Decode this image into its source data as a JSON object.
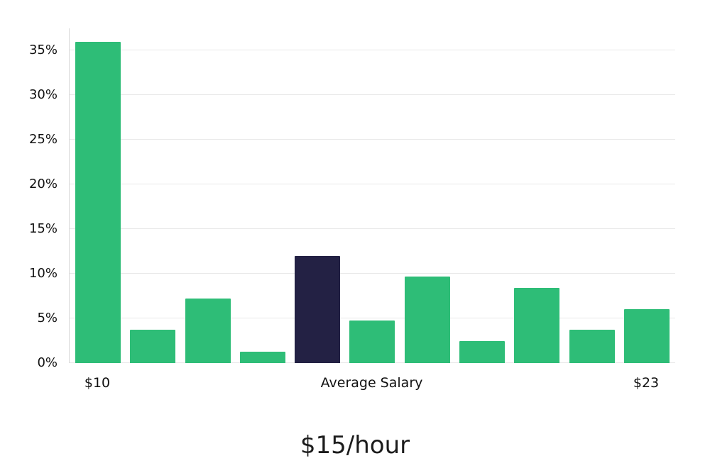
{
  "chart_data": {
    "type": "bar",
    "title": "$15/hour",
    "values": [
      36,
      3.7,
      7.2,
      1.3,
      12,
      4.8,
      9.7,
      2.5,
      8.4,
      3.7,
      6
    ],
    "highlight_index": 4,
    "bar_color": "#2ebd77",
    "highlight_color": "#232144",
    "y_ticks": [
      0,
      5,
      10,
      15,
      20,
      25,
      30,
      35
    ],
    "y_tick_suffix": "%",
    "ylim": [
      0,
      37.5
    ],
    "x_tick_labels": [
      "$10",
      "Average Salary",
      "$23"
    ],
    "grid": true,
    "legend": "none",
    "xlabel": "",
    "ylabel": ""
  }
}
